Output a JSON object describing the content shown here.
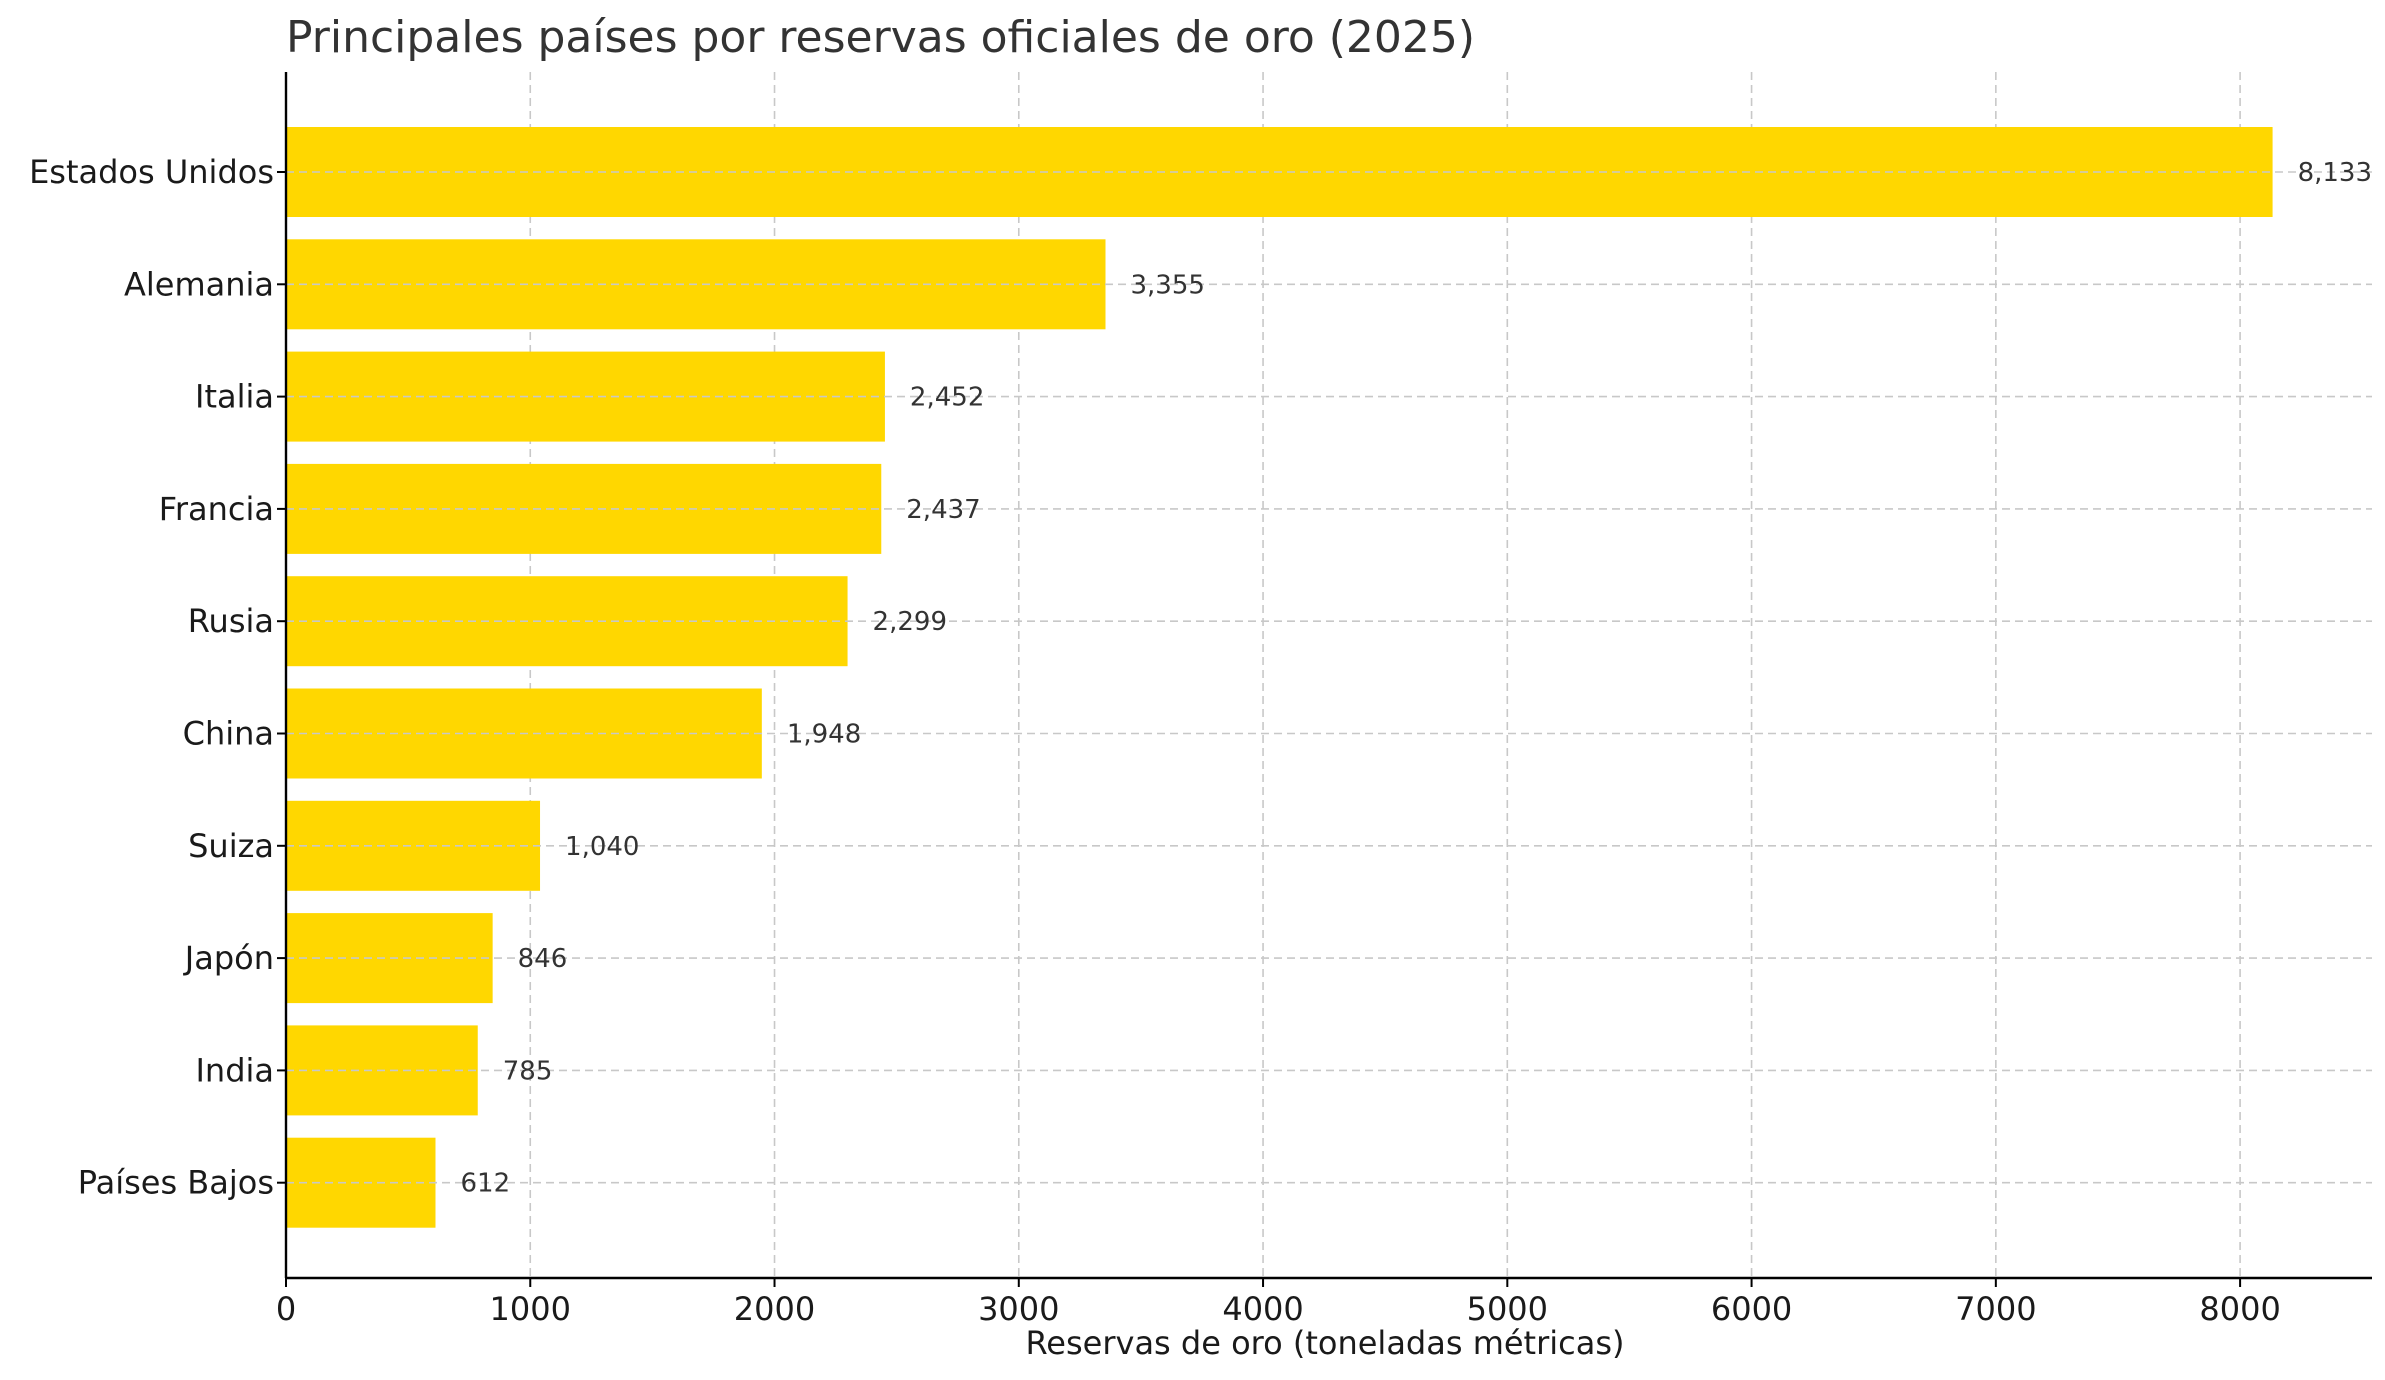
{
  "chart_data": {
    "type": "bar",
    "orientation": "horizontal",
    "title": "Principales países por reservas oficiales de oro (2025)",
    "xlabel": "Reservas de oro (toneladas métricas)",
    "ylabel": "",
    "categories": [
      "Estados Unidos",
      "Alemania",
      "Italia",
      "Francia",
      "Rusia",
      "China",
      "Suiza",
      "Japón",
      "India",
      "Países Bajos"
    ],
    "values": [
      8133,
      3355,
      2452,
      2437,
      2299,
      1948,
      1040,
      846,
      785,
      612
    ],
    "value_labels": [
      "8,133",
      "3,355",
      "2,452",
      "2,437",
      "2,299",
      "1,948",
      "1,040",
      "846",
      "785",
      "612"
    ],
    "xlim": [
      0,
      8540
    ],
    "xticks": [
      0,
      1000,
      2000,
      3000,
      4000,
      5000,
      6000,
      7000,
      8000
    ],
    "grid": true,
    "bar_color": "#FFD700"
  }
}
